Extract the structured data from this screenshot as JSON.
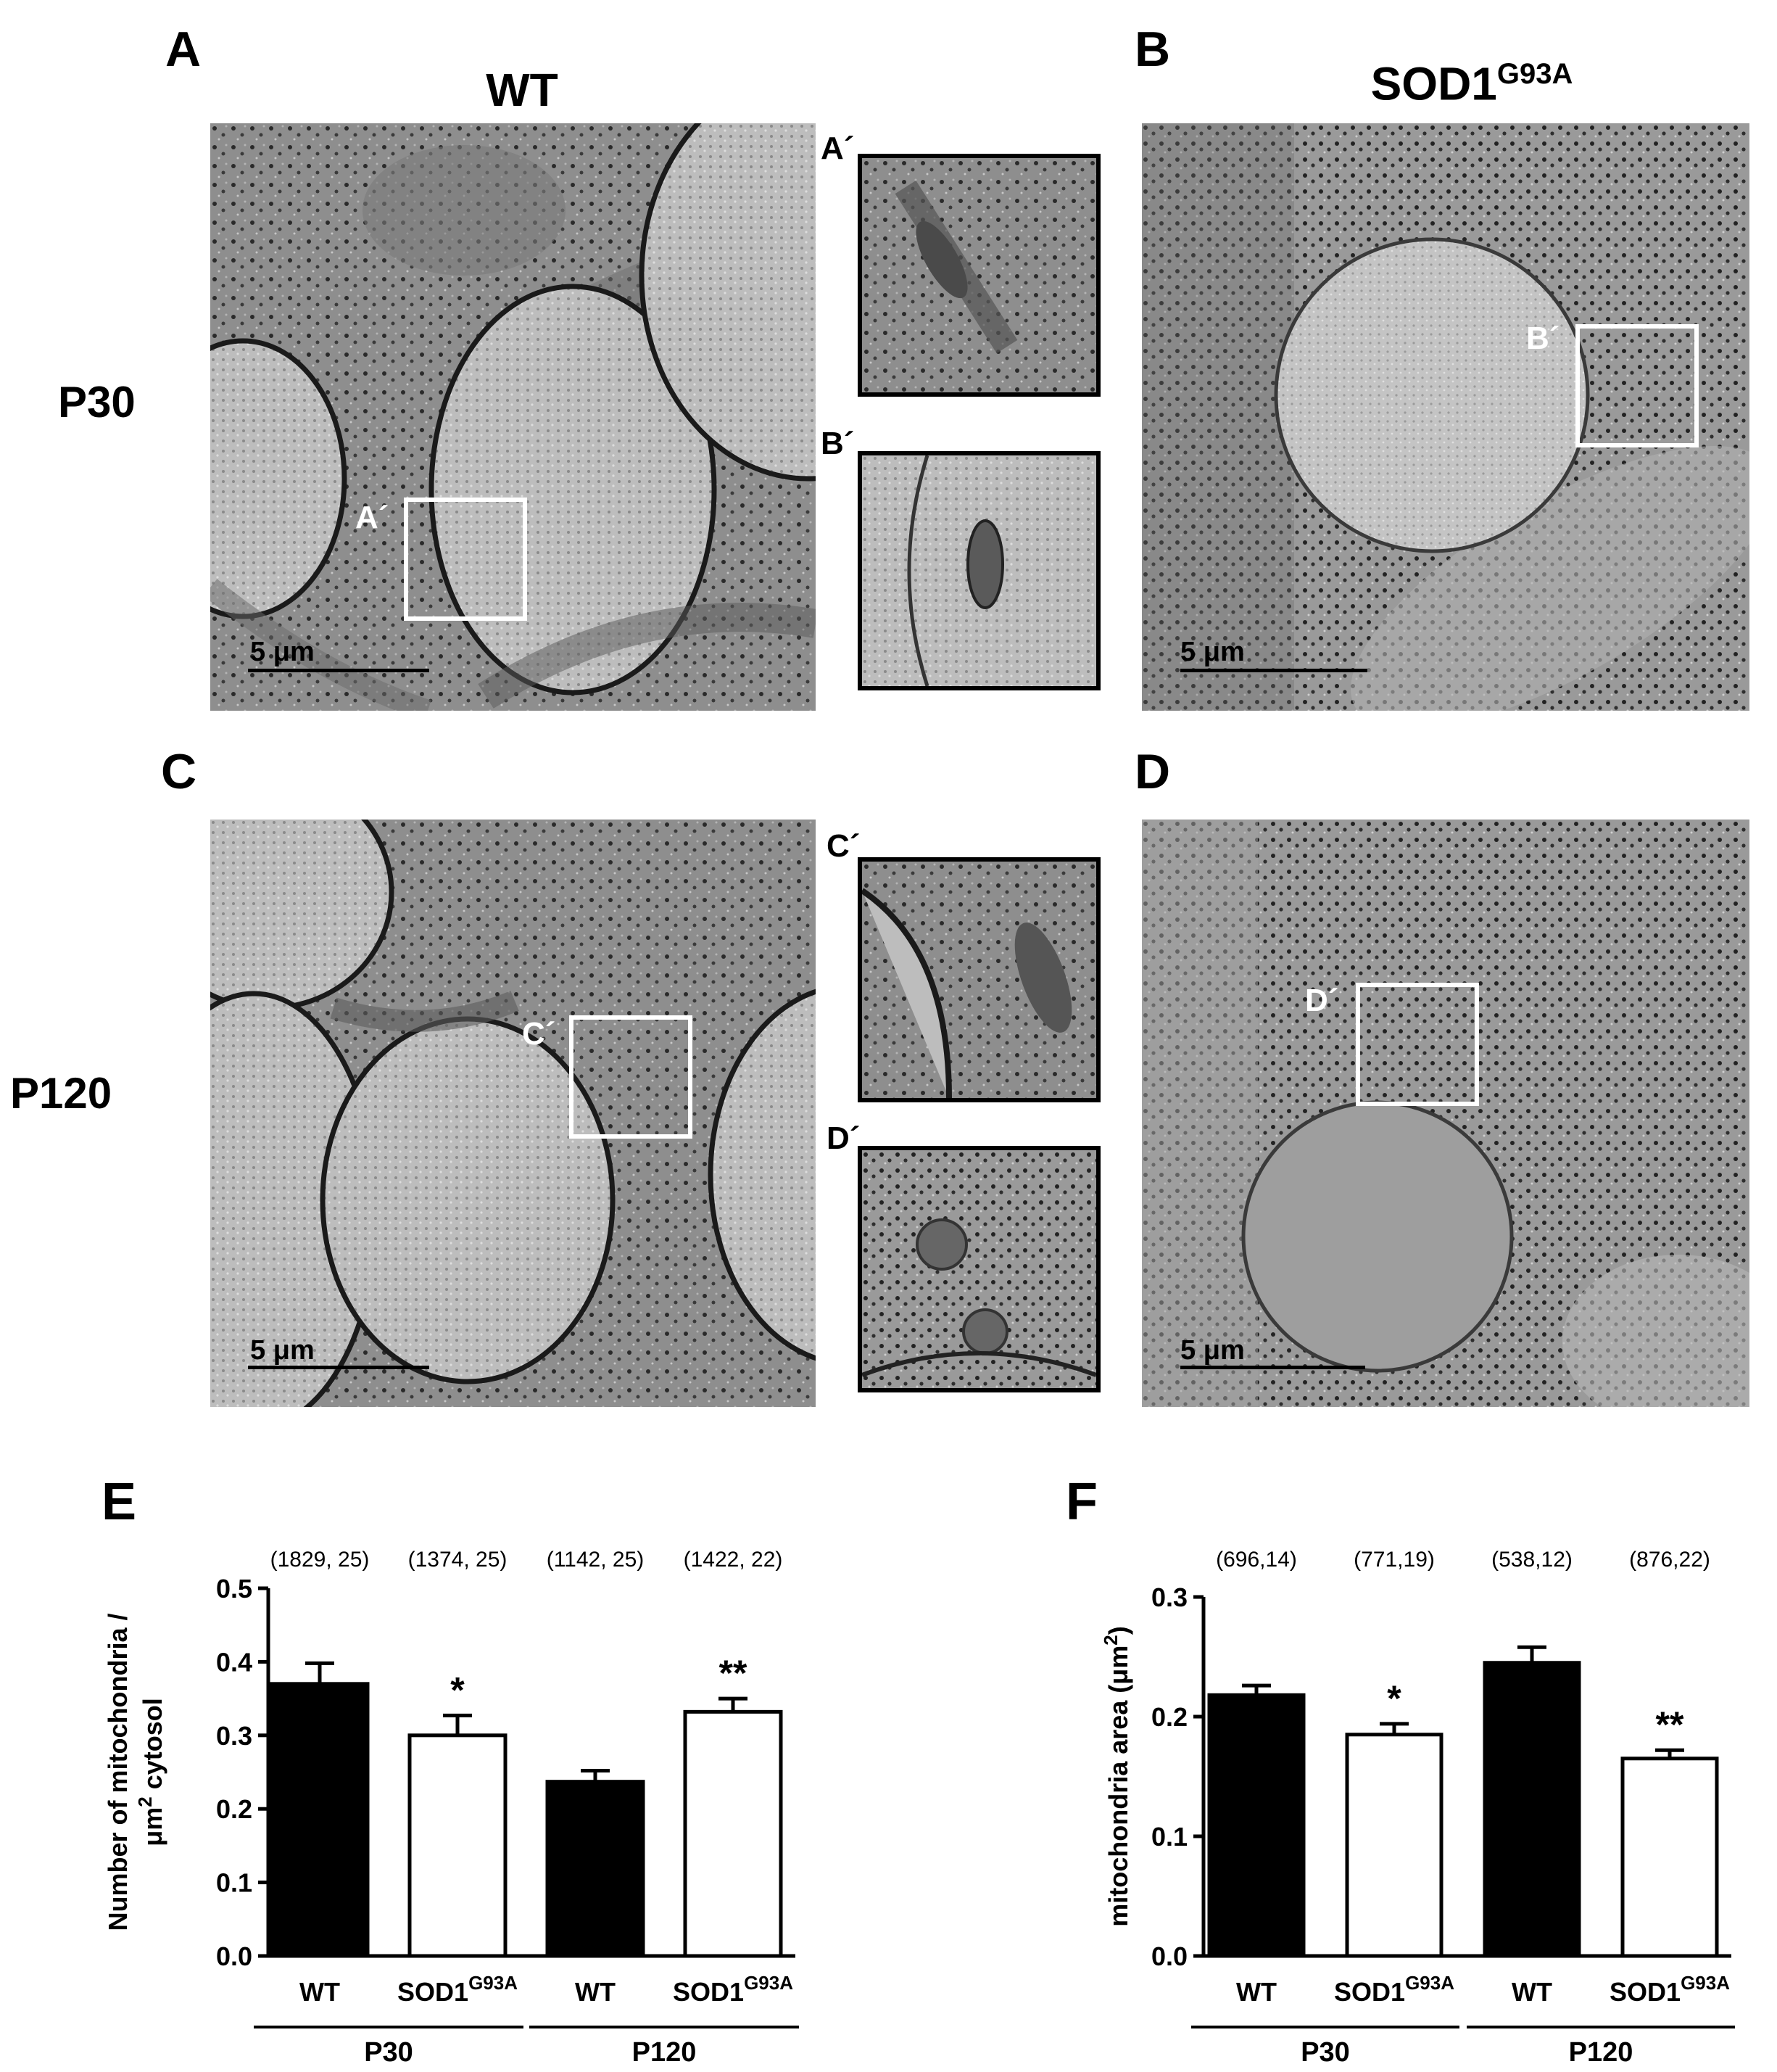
{
  "panels": {
    "A": {
      "letter": "A",
      "col_title": "WT",
      "row_title": "P30",
      "roi_label": "A´",
      "scale": "5 μm"
    },
    "B": {
      "letter": "B",
      "col_title_main": "SOD1",
      "col_title_sup": "G93A",
      "roi_label": "B´",
      "scale": "5 μm"
    },
    "C": {
      "letter": "C",
      "row_title": "P120",
      "roi_label": "C´",
      "scale": "5 μm"
    },
    "D": {
      "letter": "D",
      "roi_label": "D´",
      "scale": "5 μm"
    },
    "insets": [
      "A´",
      "B´",
      "C´",
      "D´"
    ]
  },
  "chart_data": [
    {
      "panel": "E",
      "type": "bar",
      "ylabel_line1": "Number of mitochondria /",
      "ylabel_line2_pre": "μm",
      "ylabel_line2_sup": "2",
      "ylabel_line2_post": " cytosol",
      "ylim": [
        0,
        0.5
      ],
      "yticks": [
        "0.0",
        "0.1",
        "0.2",
        "0.3",
        "0.4",
        "0.5"
      ],
      "categories": [
        "WT",
        "SOD1",
        "WT",
        "SOD1"
      ],
      "category_sups": [
        "",
        "G93A",
        "",
        "G93A"
      ],
      "groups": [
        "P30",
        "P120"
      ],
      "values": [
        0.37,
        0.3,
        0.237,
        0.332
      ],
      "errors": [
        0.028,
        0.027,
        0.015,
        0.018
      ],
      "fills": [
        "#000000",
        "#ffffff",
        "#000000",
        "#ffffff"
      ],
      "n_labels": [
        "(1829, 25)",
        "(1374, 25)",
        "(1142, 25)",
        "(1422, 22)"
      ],
      "significance": [
        "",
        "*",
        "",
        "**"
      ]
    },
    {
      "panel": "F",
      "type": "bar",
      "ylabel_line1": "mitochondria area (μm",
      "ylabel_line1_sup": "2",
      "ylabel_line1_post": ")",
      "ylim": [
        0,
        0.3
      ],
      "yticks": [
        "0.0",
        "0.1",
        "0.2",
        "0.3"
      ],
      "categories": [
        "WT",
        "SOD1",
        "WT",
        "SOD1"
      ],
      "category_sups": [
        "",
        "G93A",
        "",
        "G93A"
      ],
      "groups": [
        "P30",
        "P120"
      ],
      "values": [
        0.218,
        0.185,
        0.245,
        0.165
      ],
      "errors": [
        0.008,
        0.009,
        0.013,
        0.007
      ],
      "fills": [
        "#000000",
        "#ffffff",
        "#000000",
        "#ffffff"
      ],
      "n_labels": [
        "(696,14)",
        "(771,19)",
        "(538,12)",
        "(876,22)"
      ],
      "significance": [
        "",
        "*",
        "",
        "**"
      ]
    }
  ]
}
